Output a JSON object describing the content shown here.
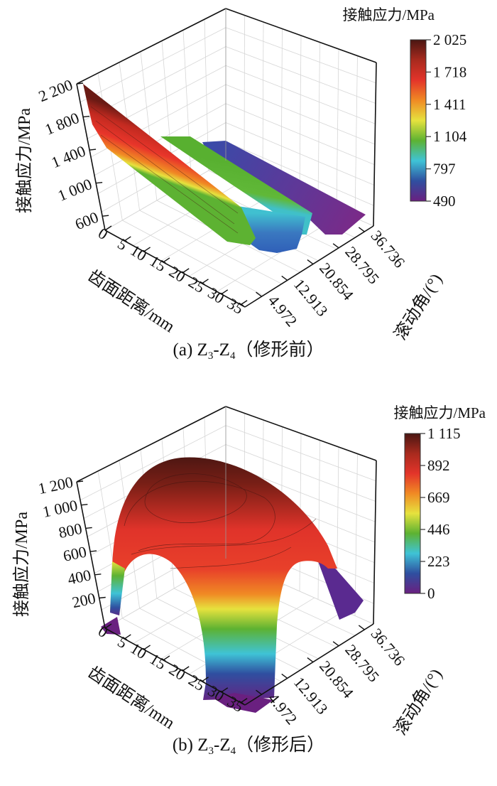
{
  "chart_data": [
    {
      "type": "surface3d",
      "caption": "(a) Z3-Z4（修形前）",
      "caption_parts": {
        "prefix": "(a) Z",
        "sub1": "3",
        "mid": "-Z",
        "sub2": "4",
        "suffix": "（修形前）"
      },
      "xlabel": "齿面距离/mm",
      "ylabel": "滚动角/(°)",
      "zlabel": "接触应力/MPa",
      "x_ticks": [
        "0",
        "5",
        "10",
        "15",
        "20",
        "25",
        "30",
        "35"
      ],
      "y_ticks": [
        "4.972",
        "12.913",
        "20.854",
        "28.795",
        "36.736"
      ],
      "z_ticks": [
        "600",
        "1 000",
        "1 400",
        "1 800",
        "2 200"
      ],
      "xlim": [
        0,
        35
      ],
      "ylim": [
        4.972,
        36.736
      ],
      "zlim": [
        600,
        2200
      ],
      "grid": true,
      "colorbar": {
        "title": "接触应力/MPa",
        "ticks": [
          "2 025",
          "1 718",
          "1 411",
          "1 104",
          "797",
          "490"
        ],
        "range": [
          490,
          2025
        ],
        "colormap": [
          "#4a1612",
          "#a82a1e",
          "#e3342a",
          "#f08a24",
          "#e6e23e",
          "#5db232",
          "#3fc3d6",
          "#2f4fa0",
          "#6a2080"
        ]
      },
      "surface_description_values": {
        "max_contact_stress": 2025,
        "min_contact_stress": 490
      }
    },
    {
      "type": "surface3d",
      "caption": "(b) Z3-Z4（修形后）",
      "caption_parts": {
        "prefix": "(b) Z",
        "sub1": "3",
        "mid": "-Z",
        "sub2": "4",
        "suffix": "（修形后）"
      },
      "xlabel": "齿面距离/mm",
      "ylabel": "滚动角/(°)",
      "zlabel": "接触应力/MPa",
      "x_ticks": [
        "0",
        "5",
        "10",
        "15",
        "20",
        "25",
        "30",
        "35"
      ],
      "y_ticks": [
        "4.972",
        "12.913",
        "20.854",
        "28.795",
        "36.736"
      ],
      "z_ticks": [
        "200",
        "400",
        "600",
        "800",
        "1 000",
        "1 200"
      ],
      "xlim": [
        0,
        35
      ],
      "ylim": [
        4.972,
        36.736
      ],
      "zlim": [
        0,
        1200
      ],
      "grid": true,
      "colorbar": {
        "title": "接触应力/MPa",
        "ticks": [
          "1 115",
          "892",
          "669",
          "446",
          "223",
          "0"
        ],
        "range": [
          0,
          1115
        ],
        "colormap": [
          "#4a1612",
          "#a82a1e",
          "#e3342a",
          "#f08a24",
          "#e6e23e",
          "#5db232",
          "#3fc3d6",
          "#2f4fa0",
          "#6a2080"
        ]
      },
      "surface_description_values": {
        "max_contact_stress": 1115,
        "min_contact_stress": 0
      }
    }
  ]
}
